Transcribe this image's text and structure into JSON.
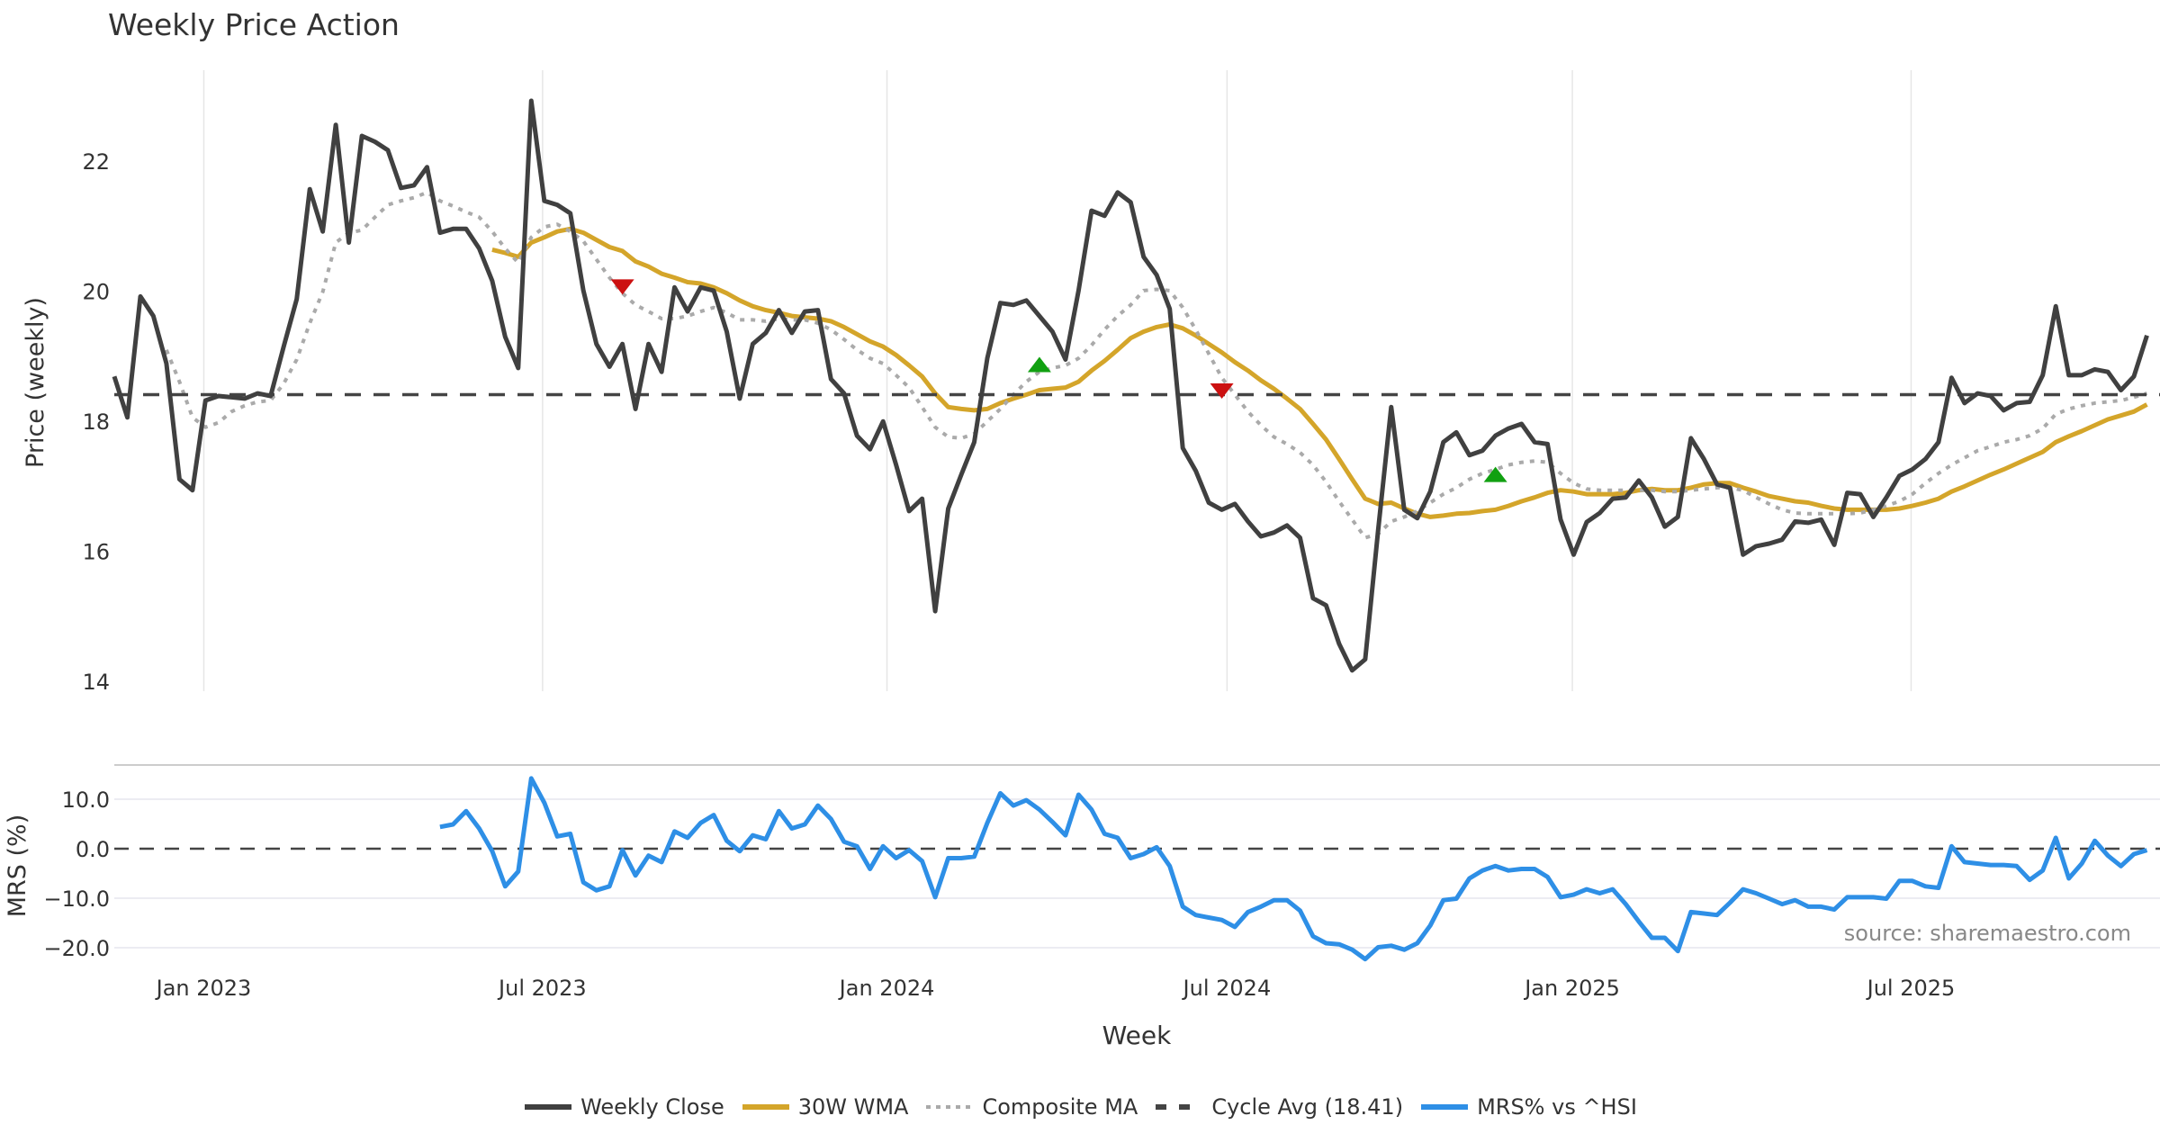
{
  "chart_data": {
    "type": "line",
    "title": "Weekly Price Action",
    "xlabel": "Week",
    "x_unit": "week index",
    "x_range": [
      0,
      157
    ],
    "x_ticks": [
      {
        "label": "Jan 2023",
        "at": 6.87
      },
      {
        "label": "Jul 2023",
        "at": 32.87
      },
      {
        "label": "Jan 2024",
        "at": 59.3
      },
      {
        "label": "Jul 2024",
        "at": 85.4
      },
      {
        "label": "Jan 2025",
        "at": 111.9
      },
      {
        "label": "Jul 2025",
        "at": 137.9
      }
    ],
    "panels": [
      {
        "name": "price",
        "ylabel": "Price (weekly)",
        "ylim": [
          13.85,
          23.4
        ],
        "y_ticks": [
          14,
          16,
          18,
          20,
          22
        ],
        "grid": "vertical",
        "series": [
          {
            "name": "Weekly Close",
            "color": "#404040",
            "style": "solid",
            "start": 0,
            "values": [
              18.69,
              18.06,
              19.92,
              19.62,
              18.89,
              17.11,
              16.94,
              18.32,
              18.39,
              18.37,
              18.35,
              18.43,
              18.39,
              19.15,
              19.88,
              21.57,
              20.92,
              22.56,
              20.75,
              22.39,
              22.3,
              22.17,
              21.59,
              21.63,
              21.91,
              20.9,
              20.96,
              20.96,
              20.66,
              20.16,
              19.3,
              18.82,
              22.93,
              21.39,
              21.33,
              21.2,
              20.01,
              19.19,
              18.84,
              19.19,
              18.19,
              19.19,
              18.76,
              20.06,
              19.69,
              20.06,
              20.01,
              19.38,
              18.35,
              19.19,
              19.36,
              19.71,
              19.36,
              19.69,
              19.71,
              18.65,
              18.43,
              17.78,
              17.57,
              18.0,
              17.33,
              16.62,
              16.81,
              15.08,
              16.66,
              17.18,
              17.68,
              18.97,
              19.82,
              19.79,
              19.86,
              19.62,
              19.38,
              18.95,
              20.01,
              21.24,
              21.16,
              21.52,
              21.37,
              20.53,
              20.25,
              19.73,
              17.59,
              17.24,
              16.75,
              16.64,
              16.73,
              16.46,
              16.23,
              16.29,
              16.4,
              16.21,
              15.28,
              15.17,
              14.58,
              14.17,
              14.34,
              16.33,
              18.22,
              16.64,
              16.51,
              16.92,
              17.68,
              17.83,
              17.48,
              17.55,
              17.78,
              17.89,
              17.96,
              17.68,
              17.65,
              16.49,
              15.95,
              16.45,
              16.59,
              16.81,
              16.83,
              17.09,
              16.83,
              16.38,
              16.53,
              17.74,
              17.42,
              17.03,
              16.98,
              15.95,
              16.08,
              16.12,
              16.18,
              16.46,
              16.44,
              16.49,
              16.1,
              16.9,
              16.88,
              16.53,
              16.83,
              17.16,
              17.26,
              17.42,
              17.68,
              18.67,
              18.28,
              18.43,
              18.39,
              18.17,
              18.28,
              18.3,
              18.71,
              19.77,
              18.71,
              18.71,
              18.8,
              18.76,
              18.48,
              18.69,
              19.32
            ]
          },
          {
            "name": "30W WMA",
            "color": "#D4A52A",
            "style": "solid",
            "start": 29,
            "values": [
              20.64,
              20.59,
              20.53,
              20.75,
              20.83,
              20.92,
              20.96,
              20.9,
              20.79,
              20.68,
              20.62,
              20.46,
              20.38,
              20.27,
              20.21,
              20.14,
              20.12,
              20.06,
              19.97,
              19.86,
              19.77,
              19.71,
              19.67,
              19.62,
              19.6,
              19.58,
              19.54,
              19.45,
              19.34,
              19.23,
              19.15,
              19.02,
              18.86,
              18.69,
              18.43,
              18.22,
              18.19,
              18.17,
              18.19,
              18.28,
              18.35,
              18.41,
              18.48,
              18.5,
              18.52,
              18.61,
              18.78,
              18.93,
              19.1,
              19.28,
              19.38,
              19.45,
              19.49,
              19.43,
              19.32,
              19.19,
              19.06,
              18.91,
              18.78,
              18.63,
              18.5,
              18.35,
              18.19,
              17.96,
              17.72,
              17.42,
              17.11,
              16.81,
              16.73,
              16.75,
              16.66,
              16.58,
              16.53,
              16.55,
              16.58,
              16.59,
              16.62,
              16.64,
              16.7,
              16.77,
              16.83,
              16.9,
              16.94,
              16.92,
              16.88,
              16.88,
              16.88,
              16.9,
              16.94,
              16.96,
              16.94,
              16.94,
              16.98,
              17.03,
              17.05,
              17.05,
              16.98,
              16.92,
              16.85,
              16.81,
              16.77,
              16.75,
              16.7,
              16.66,
              16.64,
              16.64,
              16.64,
              16.64,
              16.66,
              16.7,
              16.75,
              16.81,
              16.92,
              17.0,
              17.09,
              17.18,
              17.26,
              17.35,
              17.44,
              17.53,
              17.68,
              17.77,
              17.85,
              17.94,
              18.03,
              18.09,
              18.15,
              18.26
            ]
          },
          {
            "name": "Composite MA",
            "color": "#AAAAAA",
            "style": "dotted",
            "start": 4,
            "values": [
              19.1,
              18.61,
              18.06,
              17.91,
              17.98,
              18.15,
              18.24,
              18.3,
              18.32,
              18.58,
              18.95,
              19.51,
              19.99,
              20.75,
              20.9,
              20.94,
              21.14,
              21.33,
              21.39,
              21.44,
              21.52,
              21.39,
              21.31,
              21.22,
              21.14,
              20.92,
              20.66,
              20.44,
              20.83,
              20.99,
              21.03,
              20.92,
              20.77,
              20.49,
              20.21,
              19.97,
              19.79,
              19.69,
              19.58,
              19.58,
              19.62,
              19.69,
              19.75,
              19.67,
              19.56,
              19.56,
              19.54,
              19.58,
              19.56,
              19.56,
              19.51,
              19.41,
              19.26,
              19.1,
              18.97,
              18.89,
              18.71,
              18.52,
              18.22,
              17.91,
              17.76,
              17.74,
              17.81,
              18.0,
              18.19,
              18.41,
              18.61,
              18.76,
              18.82,
              18.86,
              18.97,
              19.17,
              19.41,
              19.62,
              19.79,
              20.01,
              20.03,
              20.01,
              19.75,
              19.41,
              19.04,
              18.67,
              18.41,
              18.15,
              17.94,
              17.76,
              17.65,
              17.52,
              17.33,
              17.07,
              16.77,
              16.49,
              16.21,
              16.27,
              16.46,
              16.53,
              16.62,
              16.75,
              16.88,
              16.98,
              17.11,
              17.2,
              17.26,
              17.33,
              17.37,
              17.39,
              17.37,
              17.2,
              17.05,
              16.96,
              16.94,
              16.94,
              16.94,
              16.94,
              16.94,
              16.92,
              16.92,
              16.94,
              16.96,
              16.98,
              16.98,
              16.94,
              16.83,
              16.73,
              16.64,
              16.59,
              16.58,
              16.58,
              16.58,
              16.58,
              16.59,
              16.64,
              16.7,
              16.77,
              16.88,
              17.05,
              17.2,
              17.33,
              17.44,
              17.55,
              17.61,
              17.68,
              17.72,
              17.78,
              17.89,
              18.11,
              18.19,
              18.24,
              18.28,
              18.3,
              18.32,
              18.37,
              18.43
            ]
          },
          {
            "name": "Cycle Avg (18.41)",
            "color": "#444444",
            "style": "dashed",
            "constant": 18.41
          }
        ],
        "markers": [
          {
            "type": "sell",
            "shape": "triangle-down",
            "color": "#CC1111",
            "x": 39,
            "y": 20.08
          },
          {
            "type": "buy",
            "shape": "triangle-up",
            "color": "#11A011",
            "x": 71,
            "y": 18.86
          },
          {
            "type": "sell",
            "shape": "triangle-down",
            "color": "#CC1111",
            "x": 85,
            "y": 18.48
          },
          {
            "type": "buy",
            "shape": "triangle-up",
            "color": "#11A011",
            "x": 106,
            "y": 17.17
          }
        ]
      },
      {
        "name": "mrs",
        "ylabel": "MRS (%)",
        "ylim": [
          -24,
          16
        ],
        "y_ticks": [
          10.0,
          0.0,
          -10.0,
          -20.0
        ],
        "y_tick_labels": [
          "10.0",
          "0.0",
          "−10.0",
          "−20.0"
        ],
        "grid": "horizontal",
        "zero_line": 0,
        "series": [
          {
            "name": "MRS% vs ^HSI",
            "color": "#2E8FE6",
            "style": "solid",
            "start": 25,
            "values": [
              4.4,
              4.9,
              7.6,
              4.1,
              -0.5,
              -7.6,
              -4.6,
              14.2,
              9.3,
              2.5,
              3.0,
              -6.8,
              -8.4,
              -7.6,
              -0.3,
              -5.4,
              -1.4,
              -2.7,
              3.5,
              2.2,
              5.2,
              6.8,
              1.6,
              -0.5,
              2.7,
              1.9,
              7.6,
              4.1,
              4.9,
              8.7,
              6.0,
              1.4,
              0.5,
              -4.1,
              0.5,
              -1.9,
              -0.3,
              -2.5,
              -9.8,
              -1.9,
              -1.9,
              -1.6,
              5.2,
              11.2,
              8.7,
              9.8,
              7.9,
              5.4,
              2.7,
              10.9,
              7.9,
              3.0,
              2.2,
              -1.9,
              -1.1,
              0.3,
              -3.5,
              -11.7,
              -13.4,
              -13.9,
              -14.4,
              -15.8,
              -12.8,
              -11.7,
              -10.4,
              -10.4,
              -12.5,
              -17.7,
              -19.1,
              -19.3,
              -20.4,
              -22.3,
              -19.9,
              -19.6,
              -20.4,
              -19.1,
              -15.5,
              -10.4,
              -10.1,
              -6.0,
              -4.4,
              -3.5,
              -4.4,
              -4.1,
              -4.1,
              -5.7,
              -9.8,
              -9.3,
              -8.2,
              -9.0,
              -8.2,
              -11.2,
              -14.7,
              -18.0,
              -18.0,
              -20.7,
              -12.8,
              -13.1,
              -13.4,
              -10.9,
              -8.2,
              -9.0,
              -10.1,
              -11.2,
              -10.4,
              -11.7,
              -11.7,
              -12.3,
              -9.8,
              -9.8,
              -9.8,
              -10.1,
              -6.5,
              -6.5,
              -7.6,
              -7.9,
              0.5,
              -2.7,
              -3.0,
              -3.3,
              -3.3,
              -3.5,
              -6.3,
              -4.4,
              2.2,
              -6.0,
              -3.0,
              1.6,
              -1.4,
              -3.5,
              -1.1,
              -0.3
            ]
          }
        ],
        "annotation": "source: sharemaestro.com"
      }
    ],
    "legend": {
      "placement": "bottom-center",
      "entries": [
        {
          "label": "Weekly Close",
          "color": "#404040",
          "style": "solid"
        },
        {
          "label": "30W WMA",
          "color": "#D4A52A",
          "style": "solid"
        },
        {
          "label": "Composite MA",
          "color": "#AAAAAA",
          "style": "dotted"
        },
        {
          "label": "Cycle Avg (18.41)",
          "color": "#444444",
          "style": "dashed"
        },
        {
          "label": "MRS% vs ^HSI",
          "color": "#2E8FE6",
          "style": "solid"
        }
      ]
    }
  }
}
